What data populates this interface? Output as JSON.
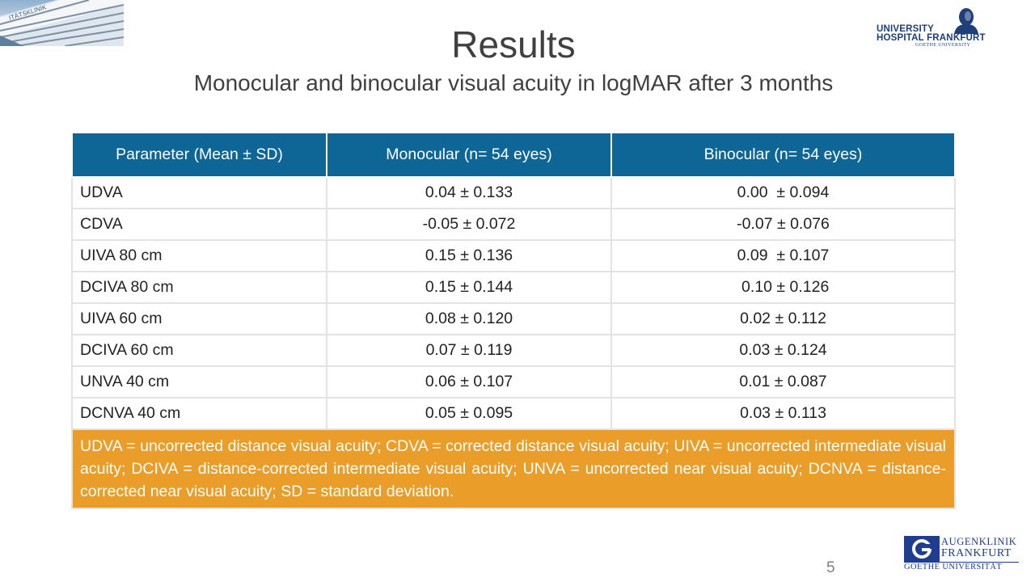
{
  "header": {
    "title": "Results",
    "subtitle": "Monocular and binocular visual acuity in logMAR after 3 months"
  },
  "logo_top": {
    "line1": "UNIVERSITY",
    "line2": "HOSPITAL FRANKFURT",
    "line3": "GOETHE UNIVERSITY",
    "color": "#1d3f7a"
  },
  "table": {
    "headers": [
      "Parameter (Mean ± SD)",
      "Monocular (n= 54 eyes)",
      "Binocular (n= 54 eyes)"
    ],
    "rows": [
      [
        "UDVA",
        "0.04 ± 0.133",
        "0.00  ± 0.094"
      ],
      [
        "CDVA",
        "-0.05 ± 0.072",
        "-0.07 ± 0.076"
      ],
      [
        "UIVA 80 cm",
        "0.15 ± 0.136",
        "0.09  ± 0.107"
      ],
      [
        "DCIVA 80 cm",
        "0.15 ± 0.144",
        " 0.10 ± 0.126"
      ],
      [
        "UIVA 60 cm",
        "0.08 ± 0.120",
        "0.02 ± 0.112"
      ],
      [
        "DCIVA 60 cm",
        "0.07 ± 0.119",
        "0.03 ± 0.124"
      ],
      [
        "UNVA 40 cm",
        "0.06 ± 0.107",
        "0.01 ± 0.087"
      ],
      [
        "DCNVA 40 cm",
        "0.05 ± 0.095",
        "0.03 ± 0.113"
      ]
    ],
    "footnote": "UDVA = uncorrected distance visual acuity; CDVA = corrected distance visual acuity; UIVA = uncorrected intermediate visual acuity; DCIVA = distance-corrected intermediate visual acuity; UNVA = uncorrected near visual acuity; DCNVA = distance-corrected near visual acuity; SD = standard deviation.",
    "header_color": "#0e6696",
    "footnote_color": "#ea9d28"
  },
  "footer": {
    "slide_number": "5",
    "logo_line1": "AUGENKLINIK",
    "logo_line2": "FRANKFURT",
    "logo_line3": "GOETHE UNIVERSITÄT",
    "logo_color": "#1e3d8f"
  }
}
